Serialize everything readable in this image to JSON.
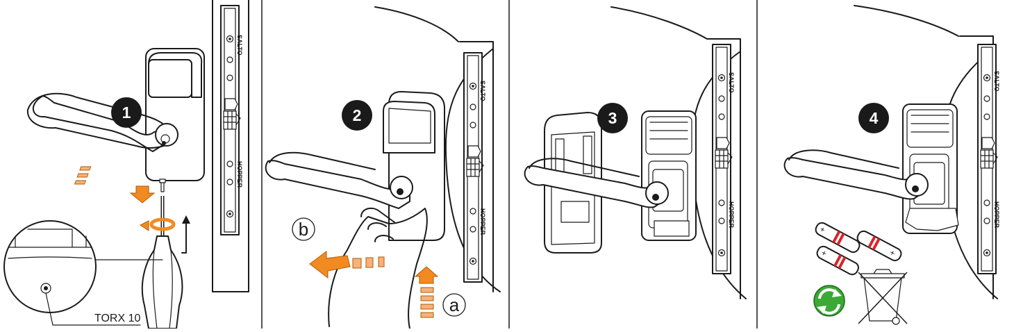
{
  "steps": [
    {
      "number": "1",
      "callout": "TORX 10"
    },
    {
      "number": "2",
      "arrow_a": "a",
      "arrow_b": "b"
    },
    {
      "number": "3"
    },
    {
      "number": "4"
    }
  ],
  "strike_plate": {
    "brand_top": "SALTO",
    "brand_bottom": "HOPPER"
  },
  "colors": {
    "accent_orange": "#f28a22",
    "recycle_green": "#3aa935",
    "battery_red": "#d8242a"
  },
  "icons": {
    "recycle": "recycle-icon",
    "no_bin": "crossed-bin-icon"
  }
}
